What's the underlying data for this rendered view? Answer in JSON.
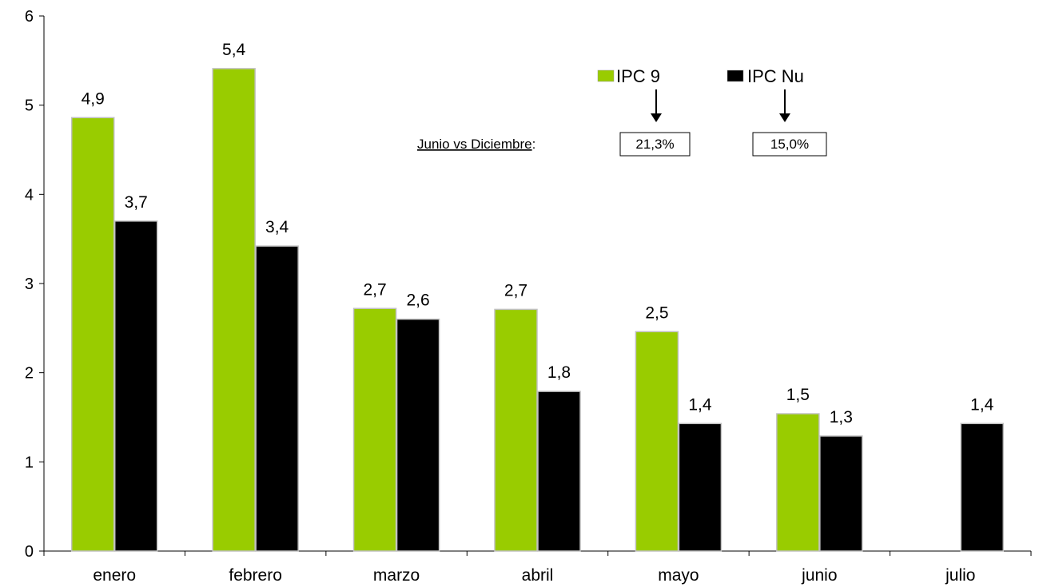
{
  "chart_data": {
    "type": "bar",
    "categories": [
      "enero",
      "febrero",
      "marzo",
      "abril",
      "mayo",
      "junio",
      "julio"
    ],
    "series": [
      {
        "name": "IPC 9",
        "color": "#99CC00",
        "values": [
          4.86,
          5.41,
          2.72,
          2.71,
          2.46,
          1.54,
          null
        ],
        "labels": [
          "4,9",
          "5,4",
          "2,7",
          "2,7",
          "2,5",
          "1,5",
          ""
        ]
      },
      {
        "name": "IPC Nu",
        "color": "#000000",
        "values": [
          3.7,
          3.42,
          2.6,
          1.79,
          1.43,
          1.29,
          1.43
        ],
        "labels": [
          "3,7",
          "3,4",
          "2,6",
          "1,8",
          "1,4",
          "1,3",
          "1,4"
        ]
      }
    ],
    "yticks": [
      "0",
      "1",
      "2",
      "3",
      "4",
      "5",
      "6"
    ],
    "ylim": [
      0,
      6
    ],
    "grid": false,
    "legend_position": "top-right"
  },
  "annotation": {
    "label_underlined": "Junio vs Diciembre",
    "label_suffix": ":",
    "ipc9_value": "21,3%",
    "ipcnu_value": "15,0%"
  }
}
